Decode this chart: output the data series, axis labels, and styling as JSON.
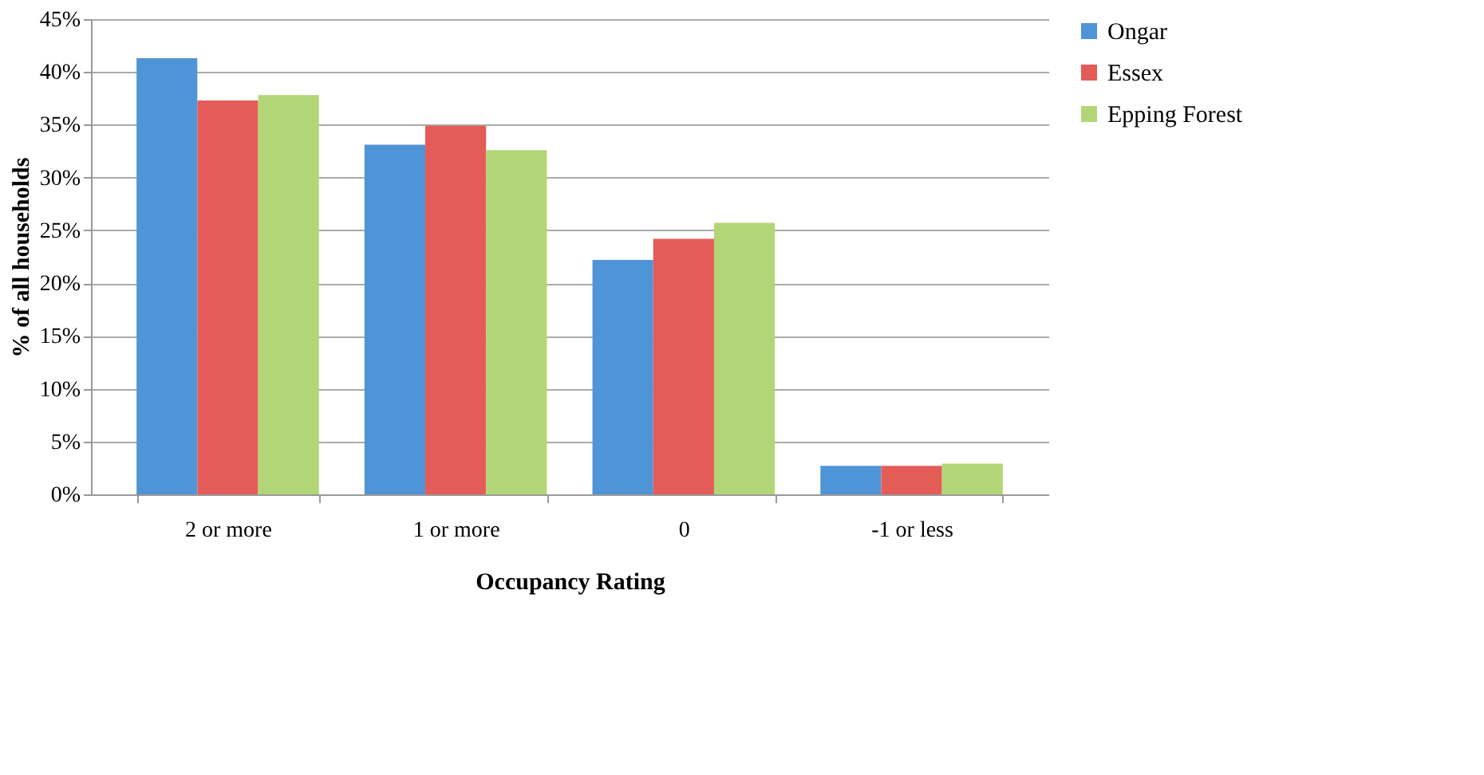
{
  "chart_data": {
    "type": "bar",
    "xlabel": "Occupancy Rating",
    "ylabel": "% of all households",
    "categories": [
      "2 or more",
      "1 or more",
      "0",
      "-1 or less"
    ],
    "series": [
      {
        "name": "Ongar",
        "color": "#4f94d6",
        "values": [
          41.3,
          33.1,
          22.2,
          2.7
        ]
      },
      {
        "name": "Essex",
        "color": "#e45c58",
        "values": [
          37.3,
          34.9,
          24.2,
          2.7
        ]
      },
      {
        "name": "Epping Forest",
        "color": "#b2d677",
        "values": [
          37.8,
          32.6,
          25.7,
          2.9
        ]
      }
    ],
    "ylim": [
      0,
      45
    ],
    "yticks": [
      {
        "value": 0,
        "label": "0%"
      },
      {
        "value": 5,
        "label": "5%"
      },
      {
        "value": 10,
        "label": "10%"
      },
      {
        "value": 15,
        "label": "15%"
      },
      {
        "value": 20,
        "label": "20%"
      },
      {
        "value": 25,
        "label": "25%"
      },
      {
        "value": 30,
        "label": "30%"
      },
      {
        "value": 35,
        "label": "35%"
      },
      {
        "value": 40,
        "label": "40%"
      },
      {
        "value": 45,
        "label": "45%"
      }
    ],
    "grid": "y",
    "legend": "right"
  }
}
